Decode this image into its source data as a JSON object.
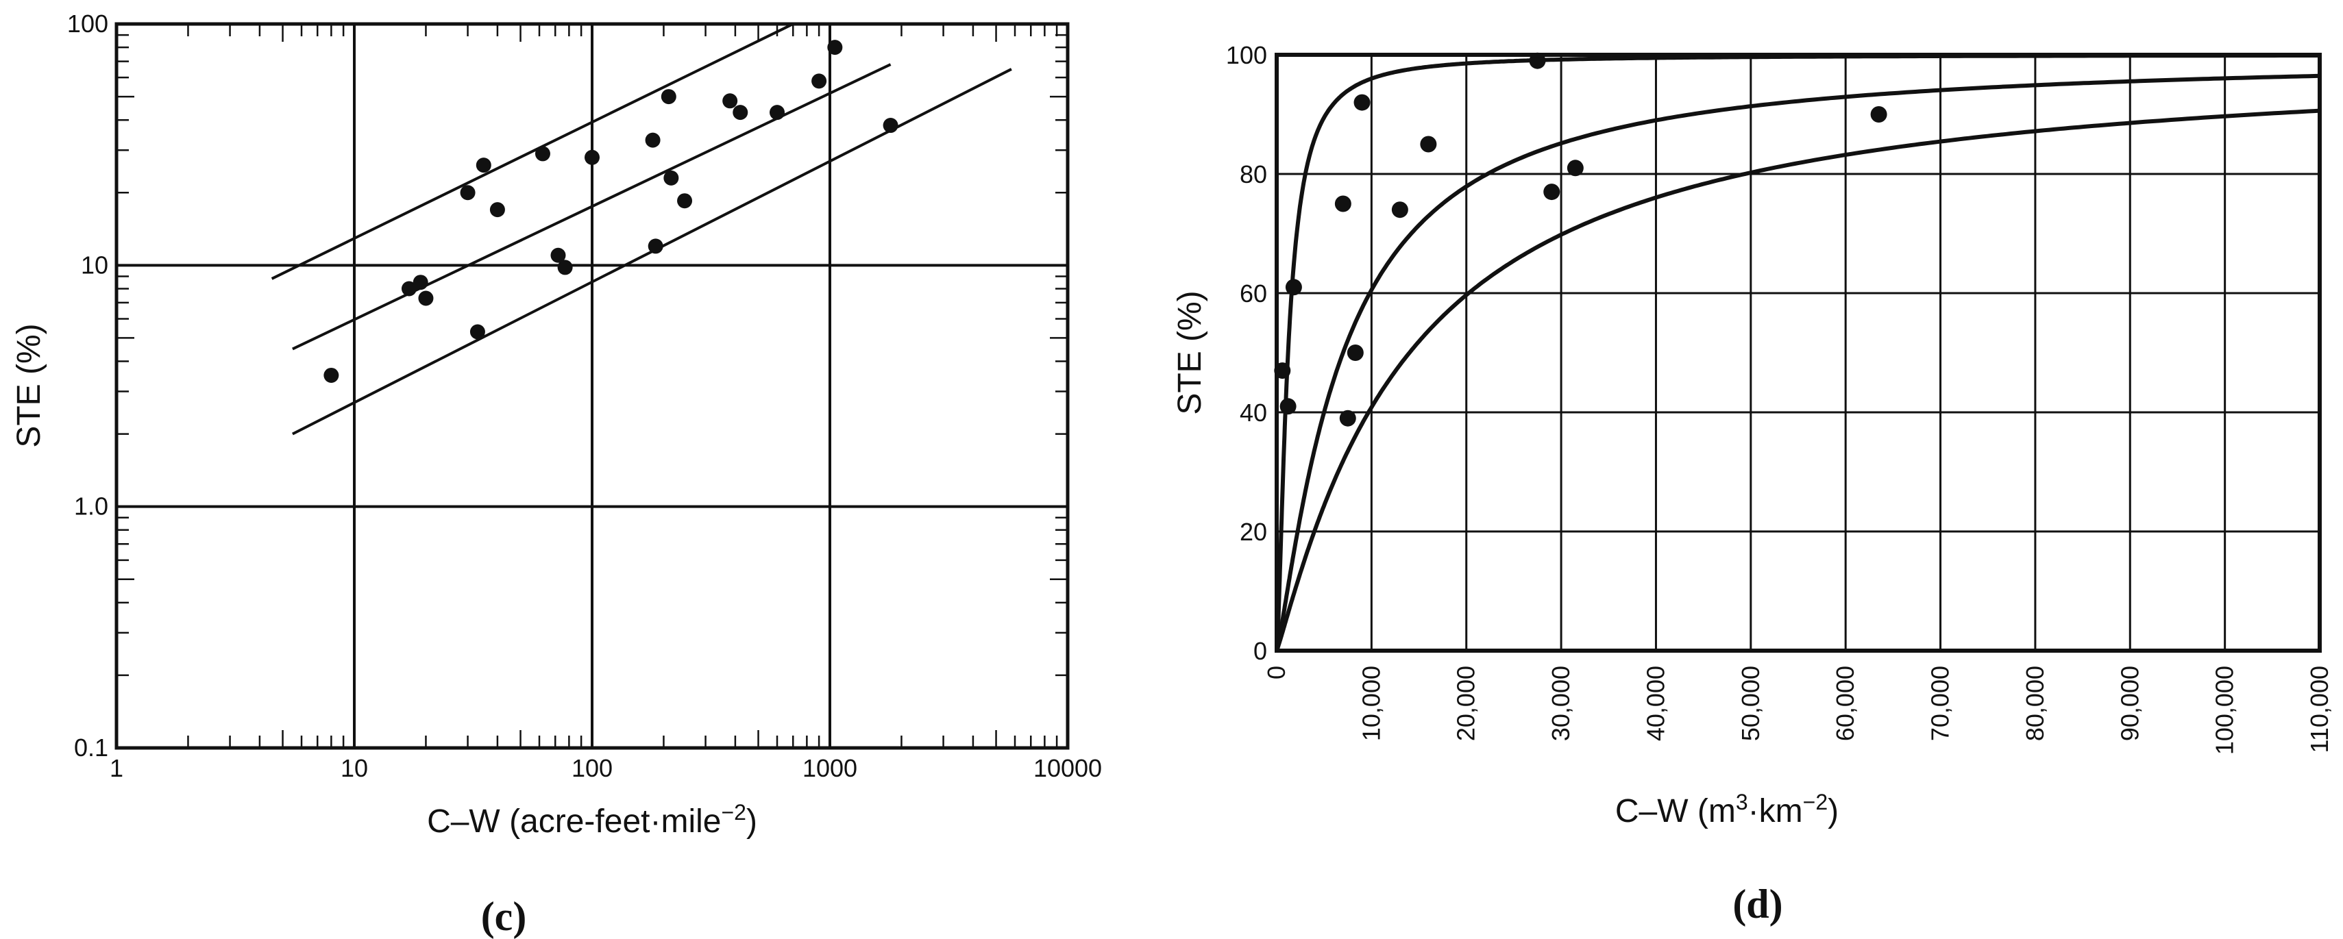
{
  "chart_data": [
    {
      "panel": "(c)",
      "type": "scatter",
      "xlabel": "C–W (acre-feet·mile",
      "xlabel_sup": "−2",
      "xlabel_end": ")",
      "ylabel": "STE (%)",
      "xscale": "log",
      "yscale": "log",
      "xlim": [
        1,
        10000
      ],
      "ylim": [
        0.1,
        100
      ],
      "xticks": [
        "1",
        "10",
        "100",
        "1000",
        "10000"
      ],
      "yticks": [
        "0.1",
        "1.0",
        "10",
        "100"
      ],
      "grid": true,
      "points": [
        {
          "x": 8,
          "y": 3.5
        },
        {
          "x": 17,
          "y": 8
        },
        {
          "x": 19,
          "y": 8.5
        },
        {
          "x": 20,
          "y": 7.3
        },
        {
          "x": 30,
          "y": 20
        },
        {
          "x": 33,
          "y": 5.3
        },
        {
          "x": 35,
          "y": 26
        },
        {
          "x": 40,
          "y": 17
        },
        {
          "x": 62,
          "y": 29
        },
        {
          "x": 72,
          "y": 11
        },
        {
          "x": 77,
          "y": 9.8
        },
        {
          "x": 100,
          "y": 28
        },
        {
          "x": 180,
          "y": 33
        },
        {
          "x": 185,
          "y": 12
        },
        {
          "x": 210,
          "y": 50
        },
        {
          "x": 215,
          "y": 23
        },
        {
          "x": 245,
          "y": 18.5
        },
        {
          "x": 380,
          "y": 48
        },
        {
          "x": 420,
          "y": 43
        },
        {
          "x": 600,
          "y": 43
        },
        {
          "x": 900,
          "y": 58
        },
        {
          "x": 1050,
          "y": 80
        },
        {
          "x": 1800,
          "y": 38
        }
      ],
      "lines": [
        {
          "points": [
            [
              4.5,
              8.8
            ],
            [
              700,
              100
            ]
          ]
        },
        {
          "points": [
            [
              5.5,
              4.5
            ],
            [
              1800,
              68
            ]
          ]
        },
        {
          "points": [
            [
              5.5,
              2.0
            ],
            [
              5800,
              65
            ]
          ]
        }
      ]
    },
    {
      "panel": "(d)",
      "type": "scatter",
      "xlabel": "C–W (m",
      "xlabel_sup1": "3",
      "xlabel_mid": "·km",
      "xlabel_sup2": "−2",
      "xlabel_end": ")",
      "ylabel": "STE (%)",
      "xlim": [
        0,
        110000
      ],
      "ylim": [
        0,
        100
      ],
      "xticks": [
        "0",
        "10,000",
        "20,000",
        "30,000",
        "40,000",
        "50,000",
        "60,000",
        "70,000",
        "80,000",
        "90,000",
        "100,000",
        "110,000"
      ],
      "yticks": [
        "0",
        "20",
        "40",
        "60",
        "80",
        "100"
      ],
      "grid": true,
      "points": [
        {
          "x": 600,
          "y": 47
        },
        {
          "x": 1200,
          "y": 41
        },
        {
          "x": 1800,
          "y": 61
        },
        {
          "x": 7000,
          "y": 75
        },
        {
          "x": 7500,
          "y": 39
        },
        {
          "x": 8300,
          "y": 50
        },
        {
          "x": 9000,
          "y": 92
        },
        {
          "x": 13000,
          "y": 74
        },
        {
          "x": 16000,
          "y": 85
        },
        {
          "x": 27500,
          "y": 99
        },
        {
          "x": 29000,
          "y": 77
        },
        {
          "x": 31500,
          "y": 81
        },
        {
          "x": 63500,
          "y": 90
        }
      ],
      "curves": [
        {
          "k": 1200,
          "n": 1.5
        },
        {
          "k": 7000,
          "n": 1.2
        },
        {
          "k": 14000,
          "n": 1.1
        }
      ]
    }
  ]
}
